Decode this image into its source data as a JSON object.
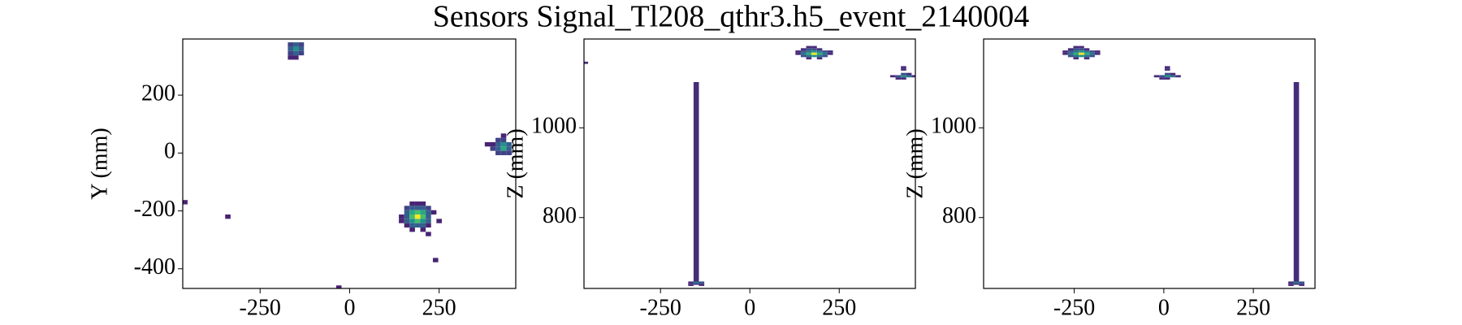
{
  "title": "Sensors Signal_Tl208_qthr3.h5_event_2140004",
  "chart_data": [
    {
      "type": "heatmap2d",
      "ylabel": "Y (mm)",
      "colormap": "viridis",
      "xlim": [
        -466,
        464
      ],
      "ylim": [
        -468,
        394
      ],
      "xticks": [
        -250,
        0,
        250
      ],
      "yticks": [
        -400,
        -200,
        0,
        200
      ],
      "x": [
        -165,
        -150,
        -135,
        -165,
        -150,
        -135,
        -165,
        -150,
        -135,
        -165,
        -150,
        385,
        400,
        415,
        430,
        430,
        415,
        430,
        445,
        400,
        415,
        430,
        445,
        415,
        430,
        445,
        160,
        175,
        190,
        205,
        220,
        160,
        175,
        190,
        205,
        220,
        160,
        175,
        190,
        205,
        220,
        160,
        175,
        190,
        205,
        220,
        160,
        175,
        190,
        205,
        220,
        145,
        145,
        235,
        250,
        175,
        205,
        220,
        175,
        190,
        205,
        -460,
        -340,
        -30,
        240
      ],
      "y": [
        375,
        375,
        375,
        360,
        360,
        360,
        345,
        345,
        345,
        330,
        330,
        30,
        30,
        45,
        45,
        60,
        30,
        30,
        30,
        15,
        15,
        15,
        15,
        0,
        0,
        0,
        -190,
        -190,
        -190,
        -190,
        -190,
        -205,
        -205,
        -205,
        -205,
        -205,
        -220,
        -220,
        -220,
        -220,
        -220,
        -235,
        -235,
        -235,
        -235,
        -235,
        -250,
        -250,
        -250,
        -250,
        -250,
        -220,
        -235,
        -205,
        -235,
        -265,
        -265,
        -280,
        -175,
        -175,
        -175,
        -170,
        -220,
        -465,
        -370
      ],
      "values": [
        2,
        3,
        2,
        3,
        5,
        3,
        2,
        3,
        2,
        1,
        1,
        1,
        1,
        2,
        2,
        1,
        3,
        5,
        3,
        2,
        3,
        6,
        3,
        2,
        2,
        2,
        2,
        3,
        3,
        3,
        2,
        3,
        6,
        7,
        6,
        3,
        3,
        7,
        10,
        7,
        3,
        3,
        5,
        7,
        5,
        3,
        1,
        3,
        3,
        3,
        1,
        1,
        1,
        1,
        1,
        1,
        1,
        1,
        1,
        1,
        1,
        1,
        1,
        1,
        1
      ]
    },
    {
      "type": "heatmap2d",
      "ylabel": "Z (mm)",
      "colormap": "viridis",
      "xlim": [
        -464,
        463
      ],
      "ylim": [
        642,
        1198
      ],
      "xticks": [
        -250,
        0,
        250
      ],
      "yticks": [
        800,
        1000
      ],
      "x": [
        165,
        180,
        150,
        165,
        180,
        195,
        135,
        150,
        165,
        180,
        195,
        210,
        225,
        135,
        150,
        165,
        180,
        195,
        210,
        225,
        150,
        165,
        180,
        195,
        210,
        165,
        195,
        400,
        415,
        430,
        445,
        460,
        430,
        445,
        430,
        430,
        430,
        415,
        -460,
        -165,
        -150,
        -135,
        -165,
        -135
      ],
      "y": [
        1180,
        1180,
        1175,
        1175,
        1175,
        1175,
        1170,
        1170,
        1170,
        1170,
        1170,
        1170,
        1170,
        1165,
        1165,
        1165,
        1165,
        1165,
        1165,
        1165,
        1160,
        1160,
        1160,
        1160,
        1160,
        1155,
        1155,
        1115,
        1115,
        1115,
        1115,
        1115,
        1120,
        1120,
        1110,
        1130,
        1135,
        1110,
        1145,
        655,
        655,
        655,
        650,
        650
      ],
      "values": [
        1,
        1,
        1,
        2,
        2,
        1,
        1,
        2,
        3,
        4,
        3,
        2,
        1,
        1,
        3,
        5,
        8,
        5,
        3,
        1,
        2,
        3,
        4,
        3,
        2,
        1,
        1,
        1,
        2,
        4,
        3,
        1,
        2,
        1,
        1,
        1,
        1,
        1,
        1,
        1,
        3,
        2,
        1,
        1
      ],
      "columns": {
        "x": [
          -150
        ],
        "y_from": [
          650
        ],
        "y_to": [
          1102
        ],
        "values": [
          1
        ]
      }
    },
    {
      "type": "heatmap2d",
      "ylabel": "Z (mm)",
      "colormap": "viridis",
      "xlim": [
        -503,
        422
      ],
      "ylim": [
        642,
        1198
      ],
      "xticks": [
        -250,
        0,
        250
      ],
      "yticks": [
        800,
        1000
      ],
      "x": [
        -245,
        -230,
        -260,
        -245,
        -230,
        -215,
        -275,
        -260,
        -245,
        -230,
        -215,
        -200,
        -185,
        -275,
        -260,
        -245,
        -230,
        -215,
        -200,
        -185,
        -260,
        -245,
        -230,
        -215,
        -200,
        -245,
        -215,
        -20,
        -5,
        10,
        25,
        40,
        10,
        25,
        10,
        10,
        10,
        -5,
        355,
        370,
        385,
        355,
        385
      ],
      "y": [
        1180,
        1180,
        1175,
        1175,
        1175,
        1175,
        1170,
        1170,
        1170,
        1170,
        1170,
        1170,
        1170,
        1165,
        1165,
        1165,
        1165,
        1165,
        1165,
        1165,
        1160,
        1160,
        1160,
        1160,
        1160,
        1155,
        1155,
        1115,
        1115,
        1115,
        1115,
        1115,
        1120,
        1120,
        1110,
        1130,
        1135,
        1110,
        655,
        655,
        655,
        650,
        650
      ],
      "values": [
        1,
        1,
        1,
        2,
        2,
        1,
        1,
        2,
        3,
        4,
        3,
        2,
        1,
        1,
        3,
        5,
        8,
        5,
        3,
        1,
        2,
        3,
        4,
        3,
        2,
        1,
        1,
        1,
        2,
        4,
        3,
        1,
        2,
        1,
        1,
        1,
        1,
        1,
        1,
        3,
        2,
        1,
        1
      ],
      "columns": {
        "x": [
          370
        ],
        "y_from": [
          650
        ],
        "y_to": [
          1102
        ],
        "values": [
          1
        ]
      }
    }
  ]
}
